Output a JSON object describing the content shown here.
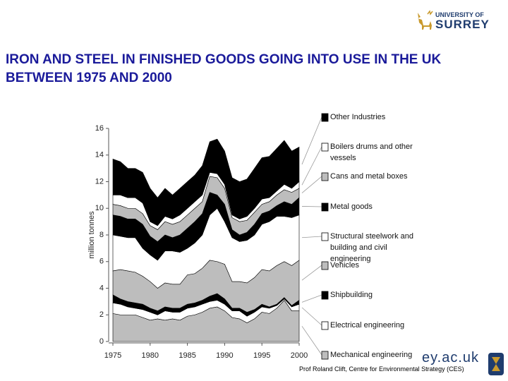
{
  "slide": {
    "logo_top": "UNIVERSITY OF",
    "logo_main": "SURREY",
    "web": "ey.ac.uk",
    "credit": "Prof Roland Clift, Centre for Environmental Strategy (CES)"
  },
  "chart_data": {
    "type": "stacked_area",
    "title": "IRON AND STEEL IN FINISHED GOODS GOING INTO USE IN THE UK BETWEEN 1975 AND 2000",
    "y_label": "million tonnes",
    "x": [
      1975,
      1976,
      1977,
      1978,
      1979,
      1980,
      1981,
      1982,
      1983,
      1984,
      1985,
      1986,
      1987,
      1988,
      1989,
      1990,
      1991,
      1992,
      1993,
      1994,
      1995,
      1996,
      1997,
      1998,
      1999,
      2000
    ],
    "xlim": [
      1975,
      2000
    ],
    "xticks": [
      1975,
      1980,
      1985,
      1990,
      1995,
      2000
    ],
    "ylim": [
      0,
      16
    ],
    "yticks": [
      0,
      2,
      4,
      6,
      8,
      10,
      12,
      14,
      16
    ],
    "grid": false,
    "legend": "right",
    "series": [
      {
        "name": "Mechanical engineering",
        "color": "#bdbdbd",
        "values": [
          2.1,
          2.0,
          2.0,
          2.0,
          1.8,
          1.6,
          1.7,
          1.6,
          1.7,
          1.6,
          1.9,
          2.0,
          2.2,
          2.5,
          2.6,
          2.3,
          1.8,
          1.7,
          1.4,
          1.7,
          2.2,
          2.1,
          2.5,
          3.1,
          2.3,
          2.3
        ]
      },
      {
        "name": "Electrical engineering",
        "color": "#ffffff",
        "values": [
          0.8,
          0.8,
          0.6,
          0.5,
          0.6,
          0.6,
          0.3,
          0.7,
          0.5,
          0.6,
          0.6,
          0.6,
          0.6,
          0.5,
          0.5,
          0.5,
          0.5,
          0.6,
          0.5,
          0.5,
          0.4,
          0.4,
          0.2,
          0.1,
          0.3,
          0.5
        ]
      },
      {
        "name": "Shipbuilding",
        "color": "#000000",
        "values": [
          0.6,
          0.4,
          0.4,
          0.4,
          0.4,
          0.3,
          0.3,
          0.3,
          0.3,
          0.3,
          0.3,
          0.3,
          0.3,
          0.4,
          0.5,
          0.4,
          0.2,
          0.2,
          0.3,
          0.2,
          0.2,
          0.1,
          0.1,
          0.1,
          0.1,
          0.3
        ]
      },
      {
        "name": "Vehicles",
        "color": "#bdbdbd",
        "values": [
          1.8,
          2.2,
          2.3,
          2.3,
          2.1,
          2.0,
          1.7,
          1.8,
          1.8,
          1.8,
          2.2,
          2.2,
          2.4,
          2.7,
          2.4,
          2.6,
          2.0,
          2.0,
          2.2,
          2.4,
          2.6,
          2.7,
          2.9,
          2.7,
          3.0,
          3.0
        ]
      },
      {
        "name": "Structural steelwork and building and civil engineering",
        "color": "#ffffff",
        "values": [
          2.7,
          2.5,
          2.5,
          2.6,
          2.1,
          2.0,
          2.1,
          2.4,
          2.5,
          2.4,
          2.0,
          2.3,
          2.5,
          3.4,
          4.0,
          3.2,
          3.3,
          3.0,
          3.2,
          3.2,
          3.4,
          3.7,
          3.7,
          3.4,
          3.6,
          3.4
        ]
      },
      {
        "name": "Metal goods",
        "color": "#000000",
        "values": [
          1.5,
          1.5,
          1.4,
          1.4,
          1.8,
          1.4,
          1.4,
          1.2,
          1.0,
          1.3,
          1.5,
          1.6,
          1.6,
          1.7,
          1.0,
          1.3,
          0.6,
          0.5,
          0.6,
          0.8,
          0.8,
          0.8,
          0.8,
          1.1,
          1.0,
          1.3
        ]
      },
      {
        "name": "Cans and metal boxes",
        "color": "#bdbdbd",
        "values": [
          0.8,
          0.8,
          0.8,
          0.8,
          0.8,
          0.8,
          0.9,
          1.0,
          1.0,
          1.0,
          1.0,
          1.0,
          0.9,
          1.2,
          1.3,
          1.2,
          0.9,
          1.0,
          0.9,
          0.9,
          0.7,
          0.7,
          0.8,
          0.9,
          0.9,
          0.7
        ]
      },
      {
        "name": "Boilers drums and other vessels",
        "color": "#ffffff",
        "values": [
          0.7,
          0.8,
          0.8,
          0.8,
          0.8,
          0.3,
          0.3,
          0.4,
          0.4,
          0.5,
          0.5,
          0.5,
          0.5,
          0.3,
          0.3,
          0.3,
          0.2,
          0.2,
          0.3,
          0.3,
          0.4,
          0.3,
          0.3,
          0.4,
          0.3,
          0.5
        ]
      },
      {
        "name": "Other Industries",
        "color": "#000000",
        "values": [
          2.7,
          2.5,
          2.2,
          2.2,
          2.3,
          2.5,
          2.1,
          2.1,
          1.8,
          2.0,
          2.0,
          2.0,
          2.2,
          2.3,
          2.6,
          2.5,
          2.8,
          2.8,
          2.8,
          3.0,
          3.1,
          3.1,
          3.2,
          3.3,
          2.8,
          2.6
        ]
      }
    ]
  }
}
